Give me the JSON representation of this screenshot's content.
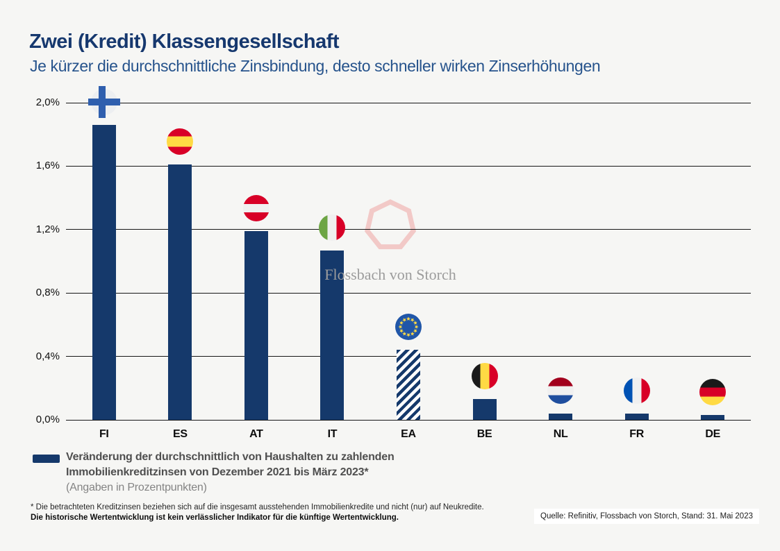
{
  "header": {
    "title": "Zwei (Kredit) Klassengesellschaft",
    "subtitle": "Je kürzer die durchschnittliche Zinsbindung, desto schneller wirken Zinserhöhungen"
  },
  "watermark": {
    "brand": "Flossbach von Storch"
  },
  "chart_data": {
    "type": "bar",
    "categories": [
      "FI",
      "ES",
      "AT",
      "IT",
      "EA",
      "BE",
      "NL",
      "FR",
      "DE"
    ],
    "values": [
      1.86,
      1.61,
      1.19,
      1.07,
      0.44,
      0.13,
      0.04,
      0.04,
      0.03
    ],
    "unit": "percentage points",
    "title": "Veränderung der durchschnittlich von Haushalten zu zahlenden Immobilienkreditzinsen von Dezember 2021 bis März 2023",
    "xlabel": "",
    "ylabel": "",
    "ylim": [
      0,
      2.0
    ],
    "ytick_labels": [
      "2,0%",
      "1,6%",
      "1,2%",
      "0,8%",
      "0,4%",
      "0,0%"
    ],
    "grid": true,
    "legend_position": "bottom-left",
    "bar_color": "#15396b",
    "hatched_categories": [
      "EA"
    ],
    "flag_icons": [
      "finland-flag-icon",
      "spain-flag-icon",
      "austria-flag-icon",
      "italy-flag-icon",
      "eu-flag-icon",
      "belgium-flag-icon",
      "netherlands-flag-icon",
      "france-flag-icon",
      "germany-flag-icon"
    ]
  },
  "legend": {
    "label_line1": "Veränderung der durchschnittlich von Haushalten zu zahlenden",
    "label_line2": "Immobilienkreditzinsen von Dezember 2021 bis März 2023*",
    "sub_label": "(Angaben in Prozentpunkten)",
    "swatch_color": "#15396b"
  },
  "footnotes": {
    "line1": "* Die betrachteten Kreditzinsen beziehen sich auf die insgesamt ausstehenden Immobilienkredite und nicht (nur) auf Neukredite.",
    "line2": "Die historische Wertentwicklung ist kein verlässlicher Indikator für die künftige Wertentwicklung."
  },
  "source": "Quelle: Refinitiv, Flossbach von Storch, Stand: 31. Mai 2023",
  "colors": {
    "title": "#16386e",
    "subtitle": "#26538c",
    "bar": "#15396b",
    "hatch_stripe": "#15396b",
    "watermark_outline": "#f2c9c7",
    "watermark_text": "#9c9c9c",
    "background": "#f6f6f4",
    "gridline": "#161616"
  }
}
